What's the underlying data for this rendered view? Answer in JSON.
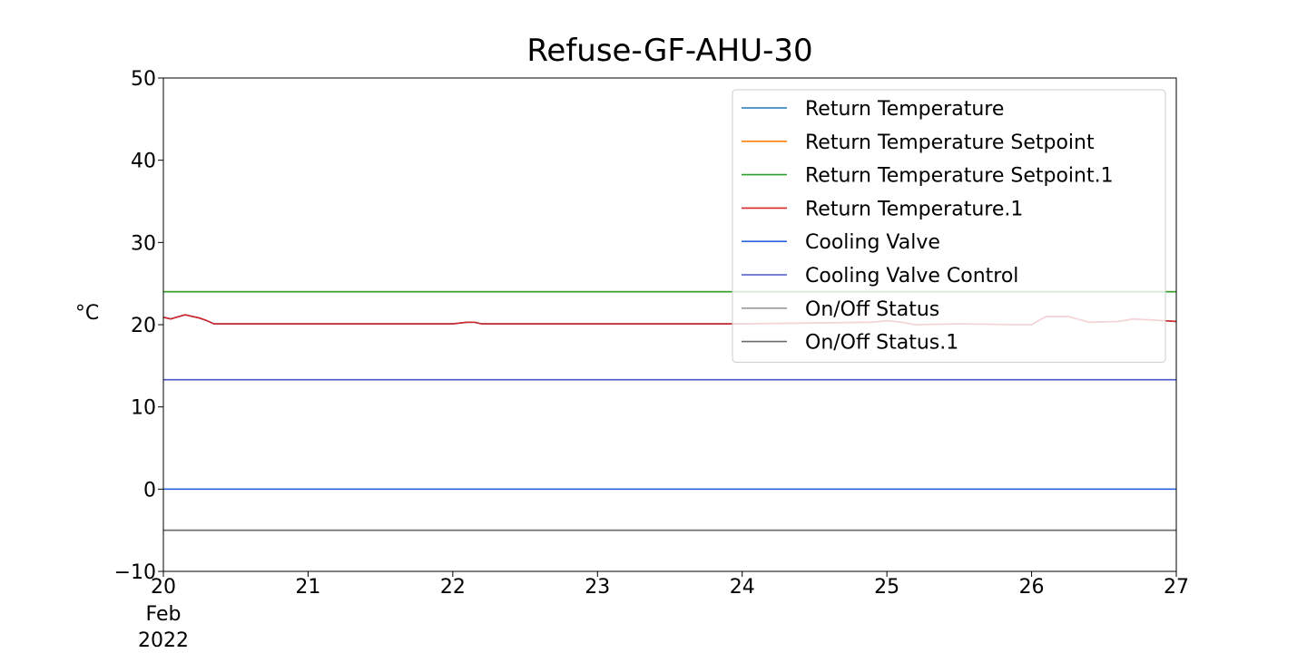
{
  "chart_data": {
    "type": "line",
    "title": "Refuse-GF-AHU-30",
    "ylabel": "°C",
    "xlabel": "",
    "ylim": [
      -10,
      50
    ],
    "xlim": [
      20,
      27
    ],
    "yticks": [
      -10,
      0,
      10,
      20,
      30,
      40,
      50
    ],
    "yticklabels": [
      "−10",
      "0",
      "10",
      "20",
      "30",
      "40",
      "50"
    ],
    "xticks": [
      20,
      21,
      22,
      23,
      24,
      25,
      26,
      27
    ],
    "xticklabels": [
      "20",
      "21",
      "22",
      "23",
      "24",
      "25",
      "26",
      "27"
    ],
    "xsublabels": [
      "Feb",
      "2022"
    ],
    "grid": false,
    "legend_position": "top-right",
    "series": [
      {
        "name": "Return Temperature",
        "color": "#1f77b4",
        "x": [
          20,
          20.05,
          20.15,
          20.25,
          20.3,
          20.35,
          21,
          22,
          22.1,
          22.15,
          22.2,
          23,
          24,
          24.9,
          25.0,
          25.1,
          25.2,
          25.5,
          25.9,
          26.0,
          26.1,
          26.25,
          26.4,
          26.6,
          26.7,
          26.9,
          27
        ],
        "y": [
          20.9,
          20.7,
          21.2,
          20.8,
          20.5,
          20.1,
          20.1,
          20.1,
          20.3,
          20.3,
          20.1,
          20.1,
          20.1,
          20.3,
          20.5,
          20.3,
          20.0,
          20.1,
          20.0,
          20.0,
          21.0,
          21.0,
          20.3,
          20.4,
          20.7,
          20.5,
          20.4
        ]
      },
      {
        "name": "Return Temperature Setpoint",
        "color": "#ff7f0e",
        "x": [
          20,
          27
        ],
        "y": [
          24,
          24
        ]
      },
      {
        "name": "Return Temperature Setpoint.1",
        "color": "#2ca02c",
        "x": [
          20,
          27
        ],
        "y": [
          24,
          24
        ]
      },
      {
        "name": "Return Temperature.1",
        "color": "#d62728",
        "x": [
          20,
          20.05,
          20.15,
          20.25,
          20.3,
          20.35,
          21,
          22,
          22.1,
          22.15,
          22.2,
          23,
          24,
          24.9,
          25.0,
          25.1,
          25.2,
          25.5,
          25.9,
          26.0,
          26.1,
          26.25,
          26.4,
          26.6,
          26.7,
          26.9,
          27
        ],
        "y": [
          20.9,
          20.7,
          21.2,
          20.8,
          20.5,
          20.1,
          20.1,
          20.1,
          20.3,
          20.3,
          20.1,
          20.1,
          20.1,
          20.3,
          20.5,
          20.3,
          20.0,
          20.1,
          20.0,
          20.0,
          21.0,
          21.0,
          20.3,
          20.4,
          20.7,
          20.5,
          20.4
        ]
      },
      {
        "name": "Cooling Valve",
        "color": "#2b63e0",
        "x": [
          20,
          27
        ],
        "y": [
          0,
          0
        ]
      },
      {
        "name": "Cooling Valve Control",
        "color": "#4a56c8",
        "x": [
          20,
          27
        ],
        "y": [
          13.3,
          13.3
        ]
      },
      {
        "name": "On/Off Status",
        "color": "#9b9b9b",
        "x": [
          20,
          27
        ],
        "y": [
          -5,
          -5
        ]
      },
      {
        "name": "On/Off Status.1",
        "color": "#6b6b6b",
        "x": [
          20,
          27
        ],
        "y": [
          -5,
          -5
        ]
      }
    ]
  }
}
